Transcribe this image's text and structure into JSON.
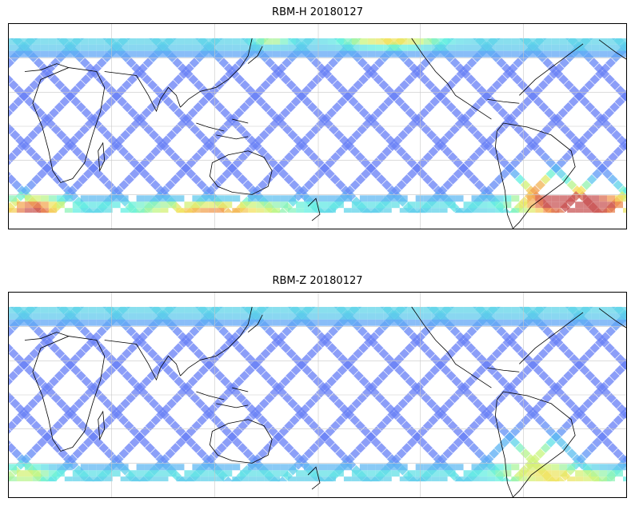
{
  "figure": {
    "panels": [
      {
        "title": "RBM-H 20180127",
        "field": "H"
      },
      {
        "title": "RBM-Z 20180127",
        "field": "Z"
      }
    ],
    "colormap": "jet",
    "colormap_alpha": 0.65,
    "grid": true,
    "coastlines": true,
    "projection": "plate-carree, centered near 110E",
    "colors": {
      "low": "#6b6bf5",
      "mid_low": "#5aa8f5",
      "mid": "#5ef0e0",
      "mid_high": "#c8f57a",
      "high": "#f5e05a",
      "very_high": "#f08a4a",
      "max": "#c85050",
      "coastline": "#000000",
      "gridline": "#c8c8c8"
    }
  }
}
